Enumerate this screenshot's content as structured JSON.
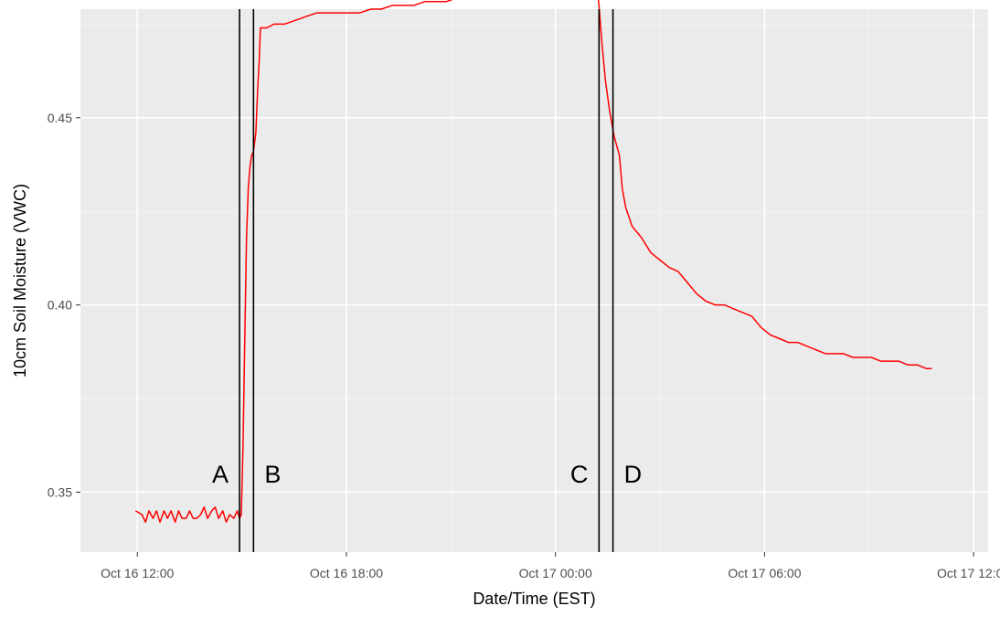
{
  "chart_data": {
    "type": "line",
    "title": "",
    "xlabel": "Date/Time (EST)",
    "ylabel": "10cm Soil Moisture (VWC)",
    "x_unit": "hours",
    "xlim": [
      "Oct 16 10:22",
      "Oct 17 12:25"
    ],
    "ylim": [
      0.334,
      0.479
    ],
    "grid": true,
    "legend": "none",
    "x_ticks": [
      {
        "value": "Oct 16 12:00",
        "label": "Oct 16 12:00"
      },
      {
        "value": "Oct 16 18:00",
        "label": "Oct 16 18:00"
      },
      {
        "value": "Oct 17 00:00",
        "label": "Oct 17 00:00"
      },
      {
        "value": "Oct 17 06:00",
        "label": "Oct 17 06:00"
      },
      {
        "value": "Oct 17 12:00",
        "label": "Oct 17 12:00"
      }
    ],
    "y_ticks": [
      {
        "value": 0.35,
        "label": "0.35"
      },
      {
        "value": 0.4,
        "label": "0.40"
      },
      {
        "value": 0.45,
        "label": "0.45"
      }
    ],
    "series": [
      {
        "color": "#ff0000",
        "x": [
          "Oct 16 11:57",
          "Oct 16 12:08",
          "Oct 16 12:14",
          "Oct 16 12:20",
          "Oct 16 12:27",
          "Oct 16 12:33",
          "Oct 16 12:39",
          "Oct 16 12:46",
          "Oct 16 12:52",
          "Oct 16 12:58",
          "Oct 16 13:05",
          "Oct 16 13:11",
          "Oct 16 13:17",
          "Oct 16 13:24",
          "Oct 16 13:30",
          "Oct 16 13:36",
          "Oct 16 13:42",
          "Oct 16 13:49",
          "Oct 16 13:55",
          "Oct 16 14:01",
          "Oct 16 14:08",
          "Oct 16 14:14",
          "Oct 16 14:20",
          "Oct 16 14:27",
          "Oct 16 14:33",
          "Oct 16 14:39",
          "Oct 16 14:46",
          "Oct 16 14:52",
          "Oct 16 14:56",
          "Oct 16 14:59",
          "Oct 16 15:02",
          "Oct 16 15:05",
          "Oct 16 15:08",
          "Oct 16 15:11",
          "Oct 16 15:14",
          "Oct 16 15:17",
          "Oct 16 15:20",
          "Oct 16 15:24",
          "Oct 16 15:27",
          "Oct 16 15:30",
          "Oct 16 15:32",
          "Oct 16 15:43",
          "Oct 16 15:55",
          "Oct 16 16:13",
          "Oct 16 16:32",
          "Oct 16 16:50",
          "Oct 16 17:09",
          "Oct 16 17:27",
          "Oct 16 17:46",
          "Oct 16 18:05",
          "Oct 16 18:23",
          "Oct 16 18:42",
          "Oct 16 19:00",
          "Oct 16 19:19",
          "Oct 16 19:37",
          "Oct 16 19:56",
          "Oct 16 20:15",
          "Oct 16 20:33",
          "Oct 16 20:52",
          "Oct 16 21:10",
          "Oct 16 21:29",
          "Oct 16 21:47",
          "Oct 16 22:06",
          "Oct 16 22:25",
          "Oct 16 22:43",
          "Oct 16 23:02",
          "Oct 16 23:20",
          "Oct 16 23:39",
          "Oct 16 23:57",
          "Oct 17 00:16",
          "Oct 17 00:35",
          "Oct 17 00:53",
          "Oct 17 01:12",
          "Oct 17 01:15",
          "Oct 17 01:20",
          "Oct 17 01:26",
          "Oct 17 01:33",
          "Oct 17 01:41",
          "Oct 17 01:50",
          "Oct 17 01:55",
          "Oct 17 02:01",
          "Oct 17 02:12",
          "Oct 17 02:28",
          "Oct 17 02:44",
          "Oct 17 03:00",
          "Oct 17 03:16",
          "Oct 17 03:31",
          "Oct 17 03:47",
          "Oct 17 04:03",
          "Oct 17 04:19",
          "Oct 17 04:35",
          "Oct 17 04:51",
          "Oct 17 05:06",
          "Oct 17 05:22",
          "Oct 17 05:38",
          "Oct 17 05:54",
          "Oct 17 06:10",
          "Oct 17 06:26",
          "Oct 17 06:41",
          "Oct 17 06:57",
          "Oct 17 07:13",
          "Oct 17 07:29",
          "Oct 17 07:45",
          "Oct 17 08:01",
          "Oct 17 08:16",
          "Oct 17 08:32",
          "Oct 17 08:48",
          "Oct 17 09:04",
          "Oct 17 09:20",
          "Oct 17 09:36",
          "Oct 17 09:51",
          "Oct 17 10:07",
          "Oct 17 10:23",
          "Oct 17 10:39",
          "Oct 17 10:48"
        ],
        "y": [
          0.345,
          0.344,
          0.342,
          0.345,
          0.343,
          0.345,
          0.342,
          0.345,
          0.343,
          0.345,
          0.342,
          0.345,
          0.343,
          0.343,
          0.345,
          0.343,
          0.343,
          0.344,
          0.346,
          0.343,
          0.345,
          0.346,
          0.343,
          0.345,
          0.342,
          0.344,
          0.343,
          0.345,
          0.343,
          0.344,
          0.363,
          0.391,
          0.418,
          0.431,
          0.437,
          0.44,
          0.441,
          0.446,
          0.457,
          0.466,
          0.474,
          0.474,
          0.475,
          0.475,
          0.476,
          0.477,
          0.478,
          0.478,
          0.478,
          0.478,
          0.478,
          0.479,
          0.479,
          0.48,
          0.48,
          0.48,
          0.481,
          0.481,
          0.481,
          0.482,
          0.482,
          0.483,
          0.483,
          0.484,
          0.484,
          0.484,
          0.484,
          0.485,
          0.484,
          0.485,
          0.484,
          0.484,
          0.484,
          0.48,
          0.47,
          0.46,
          0.452,
          0.445,
          0.44,
          0.431,
          0.426,
          0.421,
          0.418,
          0.414,
          0.412,
          0.41,
          0.409,
          0.406,
          0.403,
          0.401,
          0.4,
          0.4,
          0.399,
          0.398,
          0.397,
          0.394,
          0.392,
          0.391,
          0.39,
          0.39,
          0.389,
          0.388,
          0.387,
          0.387,
          0.387,
          0.386,
          0.386,
          0.386,
          0.385,
          0.385,
          0.385,
          0.384,
          0.384,
          0.383,
          0.383
        ]
      }
    ],
    "vlines": [
      {
        "x": "Oct 16 14:56",
        "label": "A",
        "label_side": "left"
      },
      {
        "x": "Oct 16 15:20",
        "label": "B",
        "label_side": "right"
      },
      {
        "x": "Oct 17 01:15",
        "label": "C",
        "label_side": "left"
      },
      {
        "x": "Oct 17 01:39",
        "label": "D",
        "label_side": "right"
      }
    ]
  },
  "colors": {
    "panel": "#ebebeb",
    "grid_major": "#ffffff",
    "grid_minor": "#f4f4f4",
    "line": "#ff0000",
    "vline": "#000000"
  }
}
